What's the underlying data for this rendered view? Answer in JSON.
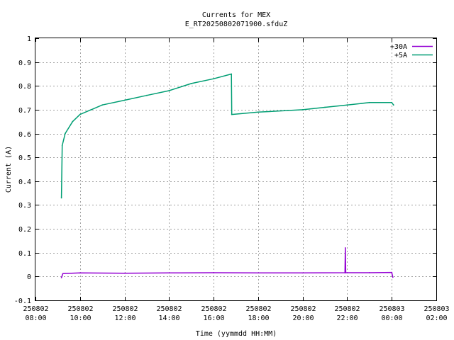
{
  "chart_data": {
    "type": "line",
    "title": "Currents for MEX",
    "subtitle": "E_RT20250802071900.sfduZ",
    "xlabel": "Time (yymmdd HH:MM)",
    "ylabel": "Current (A)",
    "xlim": [
      "2025-08-02 08:00",
      "2025-08-03 02:00"
    ],
    "ylim": [
      -0.1,
      1.0
    ],
    "grid": true,
    "legend_position": "top-right",
    "x_ticks": [
      {
        "date": "250802",
        "time": "08:00",
        "t": "2025-08-02 08:00"
      },
      {
        "date": "250802",
        "time": "10:00",
        "t": "2025-08-02 10:00"
      },
      {
        "date": "250802",
        "time": "12:00",
        "t": "2025-08-02 12:00"
      },
      {
        "date": "250802",
        "time": "14:00",
        "t": "2025-08-02 14:00"
      },
      {
        "date": "250802",
        "time": "16:00",
        "t": "2025-08-02 16:00"
      },
      {
        "date": "250802",
        "time": "18:00",
        "t": "2025-08-02 18:00"
      },
      {
        "date": "250802",
        "time": "20:00",
        "t": "2025-08-02 20:00"
      },
      {
        "date": "250802",
        "time": "22:00",
        "t": "2025-08-02 22:00"
      },
      {
        "date": "250803",
        "time": "00:00",
        "t": "2025-08-03 00:00"
      },
      {
        "date": "250803",
        "time": "02:00",
        "t": "2025-08-03 02:00"
      }
    ],
    "y_ticks": [
      "-0.1",
      "0",
      "0.1",
      "0.2",
      "0.3",
      "0.4",
      "0.5",
      "0.6",
      "0.7",
      "0.8",
      "0.9",
      "1"
    ],
    "series": [
      {
        "name": "+30A",
        "color": "#9400d3",
        "points": [
          {
            "t": "2025-08-02 09:10",
            "y": -0.005
          },
          {
            "t": "2025-08-02 09:14",
            "y": 0.012
          },
          {
            "t": "2025-08-02 10:00",
            "y": 0.015
          },
          {
            "t": "2025-08-02 12:00",
            "y": 0.014
          },
          {
            "t": "2025-08-02 14:00",
            "y": 0.015
          },
          {
            "t": "2025-08-02 16:00",
            "y": 0.016
          },
          {
            "t": "2025-08-02 18:00",
            "y": 0.015
          },
          {
            "t": "2025-08-02 20:00",
            "y": 0.015
          },
          {
            "t": "2025-08-02 21:54",
            "y": 0.016
          },
          {
            "t": "2025-08-02 21:55",
            "y": 0.12
          },
          {
            "t": "2025-08-02 21:56",
            "y": 0.016
          },
          {
            "t": "2025-08-02 23:00",
            "y": 0.016
          },
          {
            "t": "2025-08-03 00:00",
            "y": 0.017
          },
          {
            "t": "2025-08-03 00:03",
            "y": -0.003
          }
        ]
      },
      {
        "name": "+5A",
        "color": "#009e73",
        "points": [
          {
            "t": "2025-08-02 09:10",
            "y": 0.33
          },
          {
            "t": "2025-08-02 09:12",
            "y": 0.55
          },
          {
            "t": "2025-08-02 09:20",
            "y": 0.6
          },
          {
            "t": "2025-08-02 09:40",
            "y": 0.65
          },
          {
            "t": "2025-08-02 10:00",
            "y": 0.68
          },
          {
            "t": "2025-08-02 10:30",
            "y": 0.7
          },
          {
            "t": "2025-08-02 11:00",
            "y": 0.72
          },
          {
            "t": "2025-08-02 12:00",
            "y": 0.74
          },
          {
            "t": "2025-08-02 13:00",
            "y": 0.76
          },
          {
            "t": "2025-08-02 14:00",
            "y": 0.78
          },
          {
            "t": "2025-08-02 15:00",
            "y": 0.81
          },
          {
            "t": "2025-08-02 16:00",
            "y": 0.83
          },
          {
            "t": "2025-08-02 16:48",
            "y": 0.85
          },
          {
            "t": "2025-08-02 16:49",
            "y": 0.68
          },
          {
            "t": "2025-08-02 18:00",
            "y": 0.69
          },
          {
            "t": "2025-08-02 20:00",
            "y": 0.7
          },
          {
            "t": "2025-08-02 21:00",
            "y": 0.71
          },
          {
            "t": "2025-08-02 22:00",
            "y": 0.72
          },
          {
            "t": "2025-08-02 23:00",
            "y": 0.73
          },
          {
            "t": "2025-08-03 00:00",
            "y": 0.73
          },
          {
            "t": "2025-08-03 00:05",
            "y": 0.72
          }
        ]
      }
    ]
  }
}
